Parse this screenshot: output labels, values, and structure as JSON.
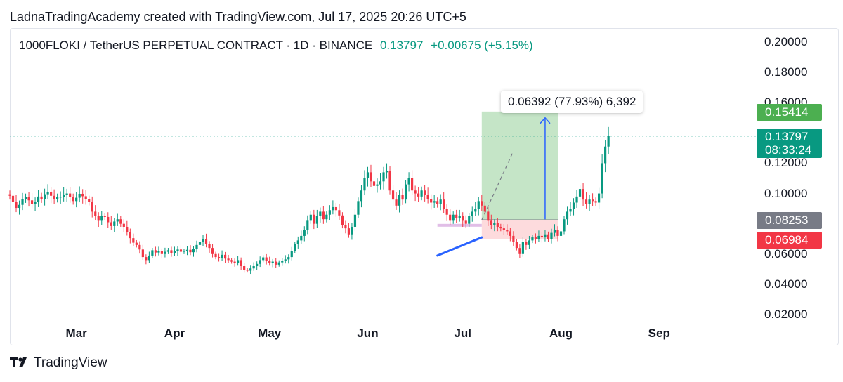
{
  "header": {
    "attribution": "LadnaTradingAcademy created with TradingView.com, Jul 17, 2025 20:26 UTC+5"
  },
  "symbol": {
    "name": "1000FLOKI / TetherUS PERPETUAL CONTRACT · 1D · BINANCE",
    "last": "0.13797",
    "change": "+0.00675 (+5.15%)"
  },
  "price_tags": {
    "target": "0.15414",
    "current": "0.13797",
    "countdown": "08:33:24",
    "entry": "0.08253",
    "stop": "0.06984"
  },
  "measure_label": "0.06392 (77.93%) 6,392",
  "footer": {
    "brand": "TradingView"
  },
  "colors": {
    "up": "#089981",
    "down": "#f23645",
    "target_zone": "#4caf50",
    "stop_zone": "#f23645",
    "entry_tag": "#787b86",
    "arrow": "#2962ff"
  },
  "chart_data": {
    "type": "candlestick",
    "y_ticks": [
      "0.20000",
      "0.18000",
      "0.16000",
      "0.12000",
      "0.10000",
      "0.06000",
      "0.04000",
      "0.02000"
    ],
    "y_tick_values": [
      0.2,
      0.18,
      0.16,
      0.12,
      0.1,
      0.06,
      0.04,
      0.02
    ],
    "ylim": [
      0.016,
      0.215
    ],
    "x_ticks": [
      "Mar",
      "Apr",
      "May",
      "Jun",
      "Jul",
      "Aug",
      "Sep"
    ],
    "x_tick_dates": [
      "2025-03-01",
      "2025-04-01",
      "2025-05-01",
      "2025-06-01",
      "2025-07-01",
      "2025-08-01",
      "2025-09-01"
    ],
    "xlim": [
      "2025-02-08",
      "2025-09-28"
    ],
    "series_start": "2025-02-08",
    "closes": [
      0.0985,
      0.0945,
      0.0905,
      0.0925,
      0.0962,
      0.0975,
      0.0955,
      0.0932,
      0.0945,
      0.098,
      0.0962,
      0.0995,
      0.1012,
      0.0985,
      0.0965,
      0.0975,
      0.0978,
      0.0992,
      0.1,
      0.0975,
      0.095,
      0.0972,
      0.0998,
      0.0982,
      0.0962,
      0.0945,
      0.088,
      0.085,
      0.082,
      0.085,
      0.0845,
      0.081,
      0.0785,
      0.0815,
      0.083,
      0.08,
      0.078,
      0.0745,
      0.0705,
      0.0675,
      0.066,
      0.063,
      0.058,
      0.056,
      0.059,
      0.0625,
      0.061,
      0.0618,
      0.06,
      0.0615,
      0.0625,
      0.0608,
      0.0618,
      0.063,
      0.0615,
      0.062,
      0.0628,
      0.0612,
      0.0635,
      0.066,
      0.068,
      0.07,
      0.0665,
      0.064,
      0.06,
      0.058,
      0.0575,
      0.0595,
      0.057,
      0.056,
      0.055,
      0.054,
      0.056,
      0.052,
      0.0495,
      0.049,
      0.0505,
      0.052,
      0.0535,
      0.056,
      0.0578,
      0.0555,
      0.054,
      0.055,
      0.053,
      0.0545,
      0.0555,
      0.0565,
      0.058,
      0.062,
      0.0665,
      0.069,
      0.072,
      0.076,
      0.082,
      0.086,
      0.08,
      0.085,
      0.088,
      0.083,
      0.086,
      0.089,
      0.091,
      0.089,
      0.0855,
      0.079,
      0.077,
      0.073,
      0.078,
      0.086,
      0.095,
      0.102,
      0.11,
      0.114,
      0.108,
      0.105,
      0.106,
      0.108,
      0.114,
      0.115,
      0.102,
      0.096,
      0.092,
      0.099,
      0.096,
      0.106,
      0.11,
      0.102,
      0.1,
      0.098,
      0.102,
      0.099,
      0.0965,
      0.094,
      0.095,
      0.093,
      0.096,
      0.09,
      0.086,
      0.082,
      0.086,
      0.084,
      0.085,
      0.082,
      0.08,
      0.085,
      0.088,
      0.09,
      0.095,
      0.092,
      0.088,
      0.082,
      0.079,
      0.0805,
      0.078,
      0.077,
      0.076,
      0.075,
      0.072,
      0.068,
      0.064,
      0.06,
      0.068,
      0.066,
      0.069,
      0.071,
      0.07,
      0.072,
      0.071,
      0.073,
      0.07,
      0.074,
      0.076,
      0.072,
      0.075,
      0.083,
      0.088,
      0.09,
      0.094,
      0.098,
      0.103,
      0.096,
      0.093,
      0.096,
      0.095,
      0.094,
      0.1,
      0.12,
      0.131,
      0.138
    ],
    "position": {
      "entry": 0.08253,
      "target": 0.15414,
      "stop": 0.06984,
      "start": "2025-07-07",
      "end": "2025-07-31"
    },
    "current_price": 0.13797,
    "trendline": {
      "from": [
        "2025-06-23",
        0.059
      ],
      "to": [
        "2025-07-07",
        0.071
      ]
    },
    "box": {
      "from": "2025-06-23",
      "to": "2025-07-07",
      "price": 0.079
    },
    "arrow": {
      "date": "2025-07-27",
      "from": 0.083,
      "to": 0.15
    }
  }
}
